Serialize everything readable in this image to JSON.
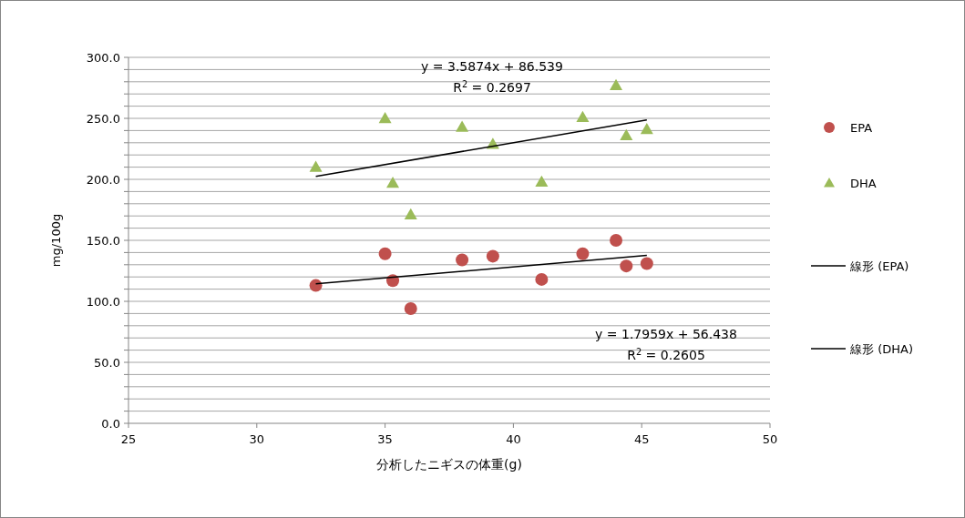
{
  "chart_data": {
    "type": "scatter",
    "xlabel": "分析したニギスの体重(g)",
    "ylabel": "mg/100g",
    "xlim": [
      25,
      50
    ],
    "xticks": [
      25,
      30,
      35,
      40,
      45,
      50
    ],
    "ylim": [
      0,
      300
    ],
    "yticks": [
      {
        "value": 0,
        "label": "0.0"
      },
      {
        "value": 10,
        "label": null
      },
      {
        "value": 20,
        "label": null
      },
      {
        "value": 30,
        "label": null
      },
      {
        "value": 40,
        "label": null
      },
      {
        "value": 50,
        "label": "50.0"
      },
      {
        "value": 60,
        "label": null
      },
      {
        "value": 70,
        "label": null
      },
      {
        "value": 80,
        "label": null
      },
      {
        "value": 90,
        "label": null
      },
      {
        "value": 100,
        "label": "100.0"
      },
      {
        "value": 110,
        "label": null
      },
      {
        "value": 120,
        "label": null
      },
      {
        "value": 130,
        "label": null
      },
      {
        "value": 140,
        "label": null
      },
      {
        "value": 150,
        "label": "150.0"
      },
      {
        "value": 160,
        "label": null
      },
      {
        "value": 170,
        "label": null
      },
      {
        "value": 180,
        "label": null
      },
      {
        "value": 190,
        "label": null
      },
      {
        "value": 200,
        "label": "200.0"
      },
      {
        "value": 210,
        "label": null
      },
      {
        "value": 220,
        "label": null
      },
      {
        "value": 230,
        "label": null
      },
      {
        "value": 240,
        "label": null
      },
      {
        "value": 250,
        "label": "250.0"
      },
      {
        "value": 260,
        "label": null
      },
      {
        "value": 270,
        "label": null
      },
      {
        "value": 280,
        "label": null
      },
      {
        "value": 290,
        "label": null
      },
      {
        "value": 300,
        "label": "300.0"
      }
    ],
    "grid": "y",
    "legend": "right",
    "series": [
      {
        "name": "EPA",
        "marker": "circle",
        "color": "#c0504d",
        "x": [
          32.3,
          35.0,
          35.3,
          36.0,
          38.0,
          39.2,
          41.1,
          42.7,
          44.0,
          44.4,
          45.2
        ],
        "values": [
          113,
          139,
          117,
          94,
          134,
          137,
          118,
          139,
          150,
          129,
          131
        ]
      },
      {
        "name": "DHA",
        "marker": "triangle",
        "color": "#9bbb59",
        "x": [
          32.3,
          35.0,
          35.3,
          36.0,
          38.0,
          39.2,
          41.1,
          42.7,
          44.0,
          44.4,
          45.2
        ],
        "values": [
          210,
          250,
          197,
          171,
          243,
          229,
          198,
          251,
          277,
          236,
          241
        ]
      },
      {
        "name": "線形 (EPA)",
        "type": "line",
        "marker": "none",
        "color": "#000000",
        "x": [
          32.3,
          45.2
        ],
        "values": [
          114.4,
          137.6
        ]
      },
      {
        "name": "線形 (DHA)",
        "type": "line",
        "marker": "none",
        "color": "#000000",
        "x": [
          32.3,
          45.2
        ],
        "values": [
          202.4,
          248.7
        ]
      }
    ],
    "annotations": [
      "y = 1.7959x + 56.438\nR$^{2}$ = 0.2605",
      "y = 3.5874x + 86.539\nR$^{2}$ = 0.2697"
    ]
  }
}
